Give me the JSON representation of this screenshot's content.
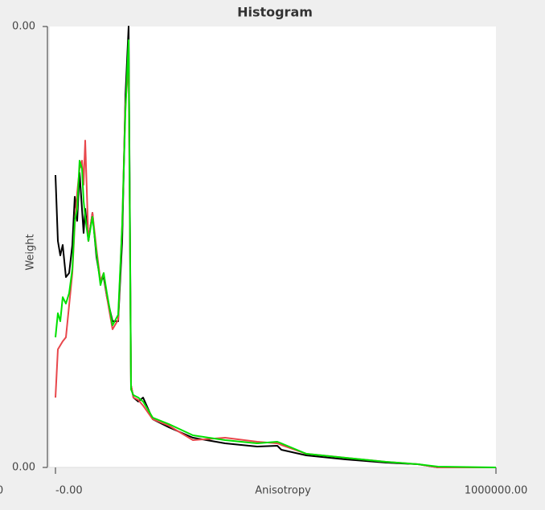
{
  "chart_data": {
    "type": "line",
    "title": "Histogram",
    "x_label": "Anisotropy",
    "y_label": "Weight",
    "annotation": "0",
    "xlim": [
      0,
      1000000
    ],
    "xticks": [
      {
        "value": 0,
        "label": "-0.00"
      },
      {
        "value": 1000000,
        "label": "1000000.00"
      }
    ],
    "ylim": [
      0,
      0.004392
    ],
    "yticks": [
      {
        "value": 0,
        "label": "0.00"
      },
      {
        "value": 0.004392,
        "label": "0.00"
      }
    ],
    "grid": false,
    "x": [
      0,
      5474,
      10949,
      16423,
      23723,
      31022,
      38321,
      43796,
      49270,
      54745,
      60219,
      63869,
      67518,
      74818,
      83942,
      93066,
      102190,
      109489,
      116788,
      129562,
      142336,
      151460,
      158759,
      166058,
      171533,
      177007,
      187956,
      198905,
      220803,
      257299,
      312044,
      385036,
      458029,
      503650,
      512774,
      569526,
      658759,
      750000,
      822993,
      868613,
      1000000
    ],
    "series": [
      {
        "color": "#000000",
        "values": [
          0.002912,
          0.002256,
          0.002112,
          0.002216,
          0.001896,
          0.001936,
          0.002216,
          0.002696,
          0.002456,
          0.002936,
          0.002576,
          0.002336,
          0.002576,
          0.002256,
          0.002536,
          0.002096,
          0.001856,
          0.001896,
          0.001696,
          0.001456,
          0.001456,
          0.002256,
          0.003696,
          0.004392,
          0.000816,
          0.000696,
          0.000656,
          0.000696,
          0.00048,
          0.0004,
          0.000296,
          0.00024,
          0.000208,
          0.000216,
          0.000176,
          0.00012,
          8e-05,
          4.8e-05,
          3.2e-05,
          0,
          0
        ]
      },
      {
        "color": "#e8474c",
        "values": [
          0.000696,
          0.001176,
          0.001216,
          0.001256,
          0.001296,
          0.001616,
          0.001936,
          0.002416,
          0.002736,
          0.002976,
          0.003056,
          0.002816,
          0.003256,
          0.002256,
          0.002536,
          0.002176,
          0.001856,
          0.001936,
          0.001696,
          0.001376,
          0.001472,
          0.002416,
          0.003616,
          0.004016,
          0.000816,
          0.000696,
          0.000672,
          0.000616,
          0.00048,
          0.000416,
          0.000272,
          0.000296,
          0.000256,
          0.00024,
          0.000224,
          0.000136,
          9.6e-05,
          5.6e-05,
          3.2e-05,
          0,
          0
        ]
      },
      {
        "color": "#00e000",
        "values": [
          0.001296,
          0.001536,
          0.001456,
          0.001696,
          0.001632,
          0.001736,
          0.001976,
          0.002456,
          0.002576,
          0.003056,
          0.002976,
          0.002656,
          0.002496,
          0.002256,
          0.002496,
          0.002136,
          0.001816,
          0.001936,
          0.001736,
          0.001416,
          0.00152,
          0.002416,
          0.003536,
          0.004256,
          0.000776,
          0.00072,
          0.000696,
          0.000656,
          0.000496,
          0.000432,
          0.00032,
          0.000272,
          0.00024,
          0.000256,
          0.00024,
          0.000136,
          9.6e-05,
          5.6e-05,
          3.2e-05,
          8e-06,
          0
        ]
      }
    ]
  }
}
